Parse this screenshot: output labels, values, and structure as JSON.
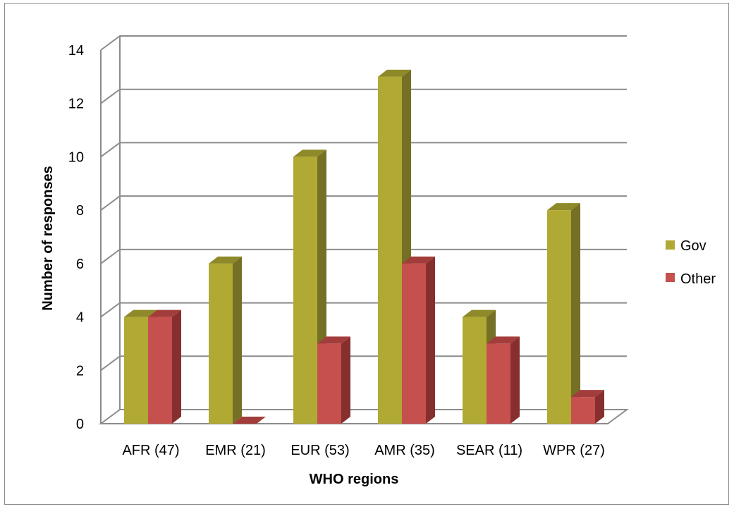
{
  "chart_data": {
    "type": "bar",
    "categories": [
      "AFR (47)",
      "EMR (21)",
      "EUR (53)",
      "AMR (35)",
      "SEAR (11)",
      "WPR (27)"
    ],
    "series": [
      {
        "name": "Gov",
        "values": [
          4,
          6,
          10,
          13,
          4,
          8
        ]
      },
      {
        "name": "Other",
        "values": [
          4,
          0,
          3,
          6,
          3,
          1
        ]
      }
    ],
    "title": "",
    "xlabel": "WHO regions",
    "ylabel": "Number of responses",
    "ylim": [
      0,
      14
    ],
    "yticks": [
      "0",
      "2",
      "4",
      "6",
      "8",
      "10",
      "12",
      "14"
    ],
    "grid": true,
    "style": "3d-clustered-column",
    "legend_position": "right",
    "colors": {
      "Gov": {
        "front": "#B0A934",
        "side": "#757025",
        "top": "#8E8929"
      },
      "Other": {
        "front": "#C5504E",
        "side": "#862F2E",
        "top": "#A33D3B"
      },
      "grid": "#8c8c8c"
    }
  }
}
